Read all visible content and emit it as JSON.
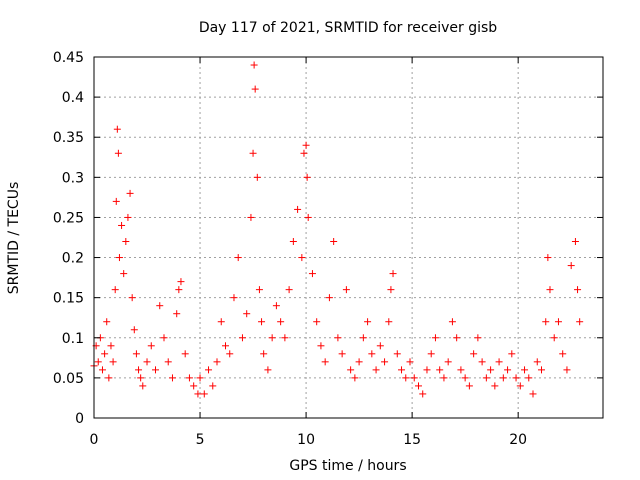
{
  "chart_data": {
    "type": "scatter",
    "title": "Day 117 of 2021, SRMTID for receiver gisb",
    "xlabel": "GPS time / hours",
    "ylabel": "SRMTID / TECUs",
    "xlim": [
      0,
      24
    ],
    "ylim": [
      0,
      0.45
    ],
    "xticks": [
      0,
      5,
      10,
      15,
      20
    ],
    "xtick_labels": [
      "0",
      "5",
      "10",
      "15",
      "20"
    ],
    "yticks": [
      0,
      0.05,
      0.1,
      0.15,
      0.2,
      0.25,
      0.3,
      0.35,
      0.4,
      0.45
    ],
    "ytick_labels": [
      "0",
      "0.05",
      "0.1",
      "0.15",
      "0.2",
      "0.25",
      "0.3",
      "0.35",
      "0.4",
      "0.45"
    ],
    "grid": true,
    "marker": "+",
    "marker_color": "#ff0000",
    "series": [
      {
        "name": "SRMTID",
        "points": [
          [
            0.0,
            0.065
          ],
          [
            0.1,
            0.09
          ],
          [
            0.2,
            0.07
          ],
          [
            0.3,
            0.1
          ],
          [
            0.4,
            0.06
          ],
          [
            0.5,
            0.08
          ],
          [
            0.6,
            0.12
          ],
          [
            0.7,
            0.05
          ],
          [
            0.8,
            0.09
          ],
          [
            0.9,
            0.07
          ],
          [
            1.0,
            0.16
          ],
          [
            1.05,
            0.27
          ],
          [
            1.1,
            0.36
          ],
          [
            1.15,
            0.33
          ],
          [
            1.2,
            0.2
          ],
          [
            1.3,
            0.24
          ],
          [
            1.4,
            0.18
          ],
          [
            1.5,
            0.22
          ],
          [
            1.6,
            0.25
          ],
          [
            1.7,
            0.28
          ],
          [
            1.8,
            0.15
          ],
          [
            1.9,
            0.11
          ],
          [
            2.0,
            0.08
          ],
          [
            2.1,
            0.06
          ],
          [
            2.2,
            0.05
          ],
          [
            2.3,
            0.04
          ],
          [
            2.5,
            0.07
          ],
          [
            2.7,
            0.09
          ],
          [
            2.9,
            0.06
          ],
          [
            3.1,
            0.14
          ],
          [
            3.3,
            0.1
          ],
          [
            3.5,
            0.07
          ],
          [
            3.7,
            0.05
          ],
          [
            3.9,
            0.13
          ],
          [
            4.0,
            0.16
          ],
          [
            4.1,
            0.17
          ],
          [
            4.3,
            0.08
          ],
          [
            4.5,
            0.05
          ],
          [
            4.7,
            0.04
          ],
          [
            4.9,
            0.03
          ],
          [
            5.0,
            0.05
          ],
          [
            5.2,
            0.03
          ],
          [
            5.4,
            0.06
          ],
          [
            5.6,
            0.04
          ],
          [
            5.8,
            0.07
          ],
          [
            6.0,
            0.12
          ],
          [
            6.2,
            0.09
          ],
          [
            6.4,
            0.08
          ],
          [
            6.6,
            0.15
          ],
          [
            6.8,
            0.2
          ],
          [
            7.0,
            0.1
          ],
          [
            7.2,
            0.13
          ],
          [
            7.4,
            0.25
          ],
          [
            7.5,
            0.33
          ],
          [
            7.55,
            0.44
          ],
          [
            7.6,
            0.41
          ],
          [
            7.7,
            0.3
          ],
          [
            7.8,
            0.16
          ],
          [
            7.9,
            0.12
          ],
          [
            8.0,
            0.08
          ],
          [
            8.2,
            0.06
          ],
          [
            8.4,
            0.1
          ],
          [
            8.6,
            0.14
          ],
          [
            8.8,
            0.12
          ],
          [
            9.0,
            0.1
          ],
          [
            9.2,
            0.16
          ],
          [
            9.4,
            0.22
          ],
          [
            9.6,
            0.26
          ],
          [
            9.8,
            0.2
          ],
          [
            9.9,
            0.33
          ],
          [
            10.0,
            0.34
          ],
          [
            10.05,
            0.3
          ],
          [
            10.1,
            0.25
          ],
          [
            10.3,
            0.18
          ],
          [
            10.5,
            0.12
          ],
          [
            10.7,
            0.09
          ],
          [
            10.9,
            0.07
          ],
          [
            11.1,
            0.15
          ],
          [
            11.3,
            0.22
          ],
          [
            11.5,
            0.1
          ],
          [
            11.7,
            0.08
          ],
          [
            11.9,
            0.16
          ],
          [
            12.1,
            0.06
          ],
          [
            12.3,
            0.05
          ],
          [
            12.5,
            0.07
          ],
          [
            12.7,
            0.1
          ],
          [
            12.9,
            0.12
          ],
          [
            13.1,
            0.08
          ],
          [
            13.3,
            0.06
          ],
          [
            13.5,
            0.09
          ],
          [
            13.7,
            0.07
          ],
          [
            13.9,
            0.12
          ],
          [
            14.0,
            0.16
          ],
          [
            14.1,
            0.18
          ],
          [
            14.3,
            0.08
          ],
          [
            14.5,
            0.06
          ],
          [
            14.7,
            0.05
          ],
          [
            14.9,
            0.07
          ],
          [
            15.1,
            0.05
          ],
          [
            15.3,
            0.04
          ],
          [
            15.5,
            0.03
          ],
          [
            15.7,
            0.06
          ],
          [
            15.9,
            0.08
          ],
          [
            16.1,
            0.1
          ],
          [
            16.3,
            0.06
          ],
          [
            16.5,
            0.05
          ],
          [
            16.7,
            0.07
          ],
          [
            16.9,
            0.12
          ],
          [
            17.1,
            0.1
          ],
          [
            17.3,
            0.06
          ],
          [
            17.5,
            0.05
          ],
          [
            17.7,
            0.04
          ],
          [
            17.9,
            0.08
          ],
          [
            18.1,
            0.1
          ],
          [
            18.3,
            0.07
          ],
          [
            18.5,
            0.05
          ],
          [
            18.7,
            0.06
          ],
          [
            18.9,
            0.04
          ],
          [
            19.1,
            0.07
          ],
          [
            19.3,
            0.05
          ],
          [
            19.5,
            0.06
          ],
          [
            19.7,
            0.08
          ],
          [
            19.9,
            0.05
          ],
          [
            20.1,
            0.04
          ],
          [
            20.3,
            0.06
          ],
          [
            20.5,
            0.05
          ],
          [
            20.7,
            0.03
          ],
          [
            20.9,
            0.07
          ],
          [
            21.1,
            0.06
          ],
          [
            21.3,
            0.12
          ],
          [
            21.4,
            0.2
          ],
          [
            21.5,
            0.16
          ],
          [
            21.7,
            0.1
          ],
          [
            21.9,
            0.12
          ],
          [
            22.1,
            0.08
          ],
          [
            22.3,
            0.06
          ],
          [
            22.5,
            0.19
          ],
          [
            22.7,
            0.22
          ],
          [
            22.8,
            0.16
          ],
          [
            22.9,
            0.12
          ]
        ]
      }
    ]
  }
}
